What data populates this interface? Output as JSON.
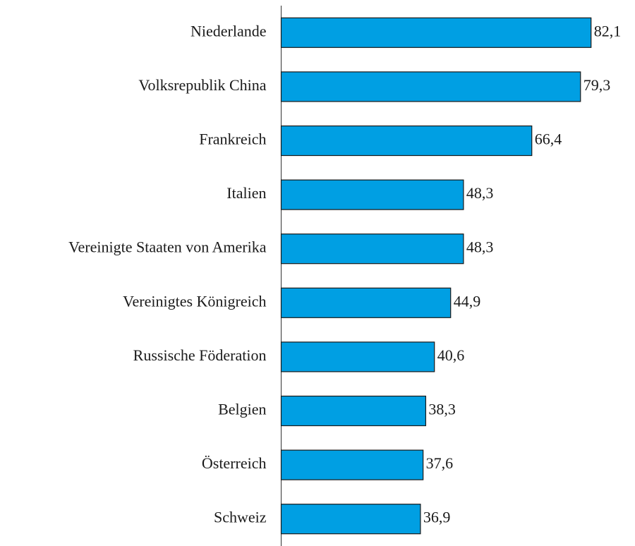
{
  "chart_data": {
    "type": "bar",
    "orientation": "horizontal",
    "categories": [
      "Niederlande",
      "Volksrepublik China",
      "Frankreich",
      "Italien",
      "Vereinigte Staaten von Amerika",
      "Vereinigtes Königreich",
      "Russische Föderation",
      "Belgien",
      "Österreich",
      "Schweiz"
    ],
    "values": [
      82.1,
      79.3,
      66.4,
      48.3,
      48.3,
      44.9,
      40.6,
      38.3,
      37.6,
      36.9
    ],
    "value_labels": [
      "82,1",
      "79,3",
      "66,4",
      "48,3",
      "48,3",
      "44,9",
      "40,6",
      "38,3",
      "37,6",
      "36,9"
    ],
    "color": "#009fe3",
    "xlim": [
      0,
      90
    ]
  }
}
